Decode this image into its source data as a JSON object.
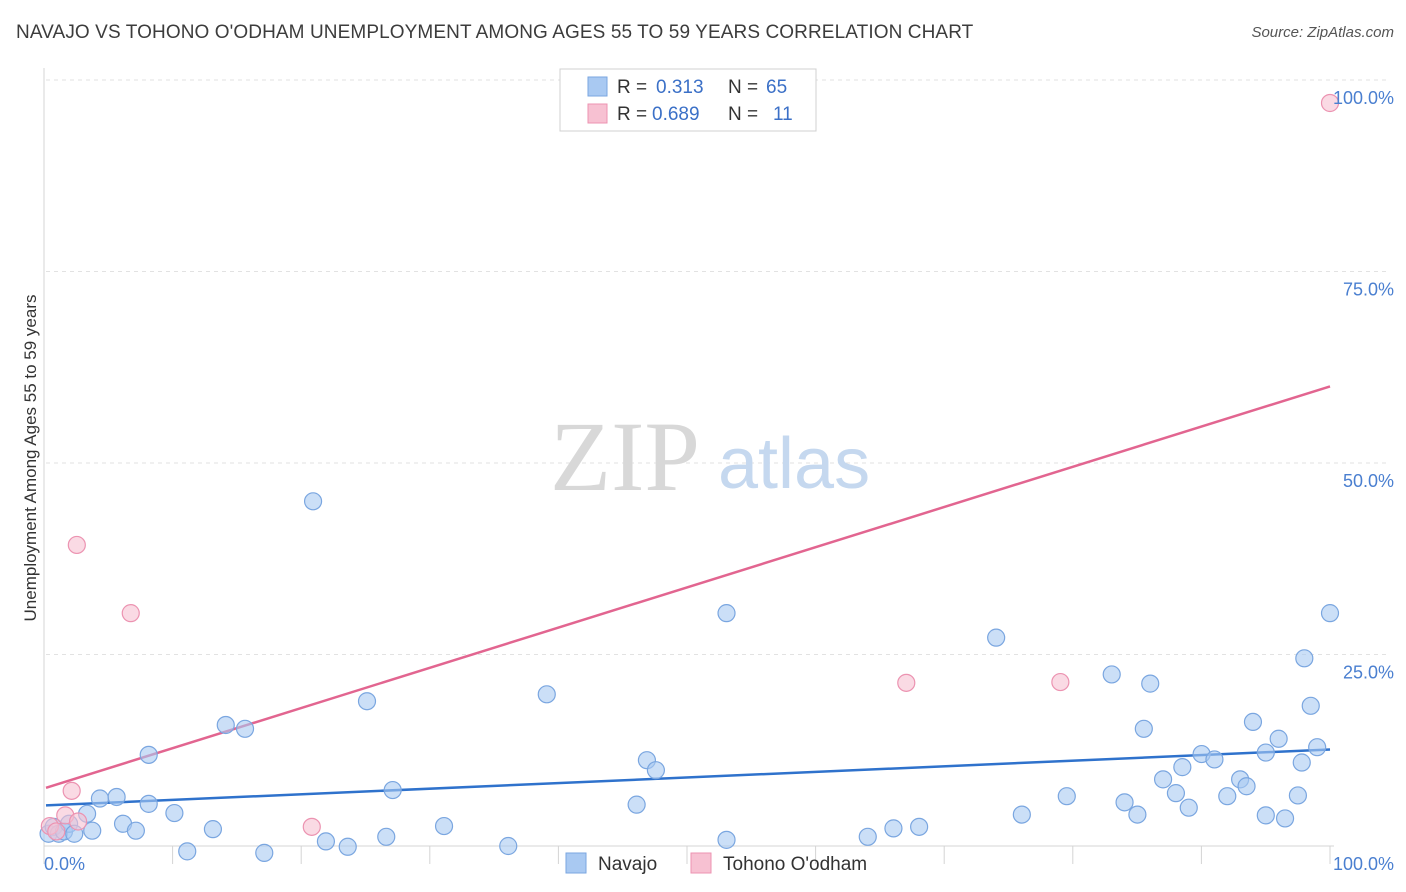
{
  "header": {
    "title": "NAVAJO VS TOHONO O'ODHAM UNEMPLOYMENT AMONG AGES 55 TO 59 YEARS CORRELATION CHART",
    "source": "Source: ZipAtlas.com"
  },
  "watermark": {
    "zip": "ZIP",
    "atlas": "atlas"
  },
  "colors": {
    "navajo_fill": "#a9c9f2",
    "navajo_stroke": "#7aa6e0",
    "navajo_line": "#2f72cc",
    "tohono_fill": "#f7c1d2",
    "tohono_stroke": "#ec93b1",
    "tohono_line": "#e26590",
    "tick_text": "#4a7fd0"
  },
  "legend": {
    "rows": [
      {
        "r_label": "R =",
        "r_value": "0.313",
        "n_label": "N =",
        "n_value": "65"
      },
      {
        "r_label": "R =",
        "r_value": "0.689",
        "n_label": "N =",
        "n_value": "11"
      }
    ]
  },
  "bottom_legend": [
    "Navajo",
    "Tohono O'odham"
  ],
  "chart_data": {
    "type": "scatter",
    "title": "NAVAJO VS TOHONO O'ODHAM UNEMPLOYMENT AMONG AGES 55 TO 59 YEARS CORRELATION CHART",
    "xlabel": "",
    "ylabel": "Unemployment Among Ages 55 to 59 years",
    "xlim": [
      0,
      100
    ],
    "ylim": [
      0,
      100
    ],
    "x_tick_labels": [
      "0.0%",
      "100.0%"
    ],
    "y_tick_labels": [
      {
        "value": 100,
        "label": "100.0%"
      },
      {
        "value": 75,
        "label": "75.0%"
      },
      {
        "value": 50,
        "label": "50.0%"
      },
      {
        "value": 25,
        "label": "25.0%"
      }
    ],
    "series": [
      {
        "name": "Navajo",
        "R": 0.313,
        "N": 65,
        "trend": {
          "x": [
            0,
            100
          ],
          "y": [
            5.3,
            12.6
          ]
        },
        "points": [
          [
            0.2,
            1.6
          ],
          [
            0.6,
            2.5
          ],
          [
            1.0,
            1.6
          ],
          [
            1.4,
            1.9
          ],
          [
            1.8,
            2.9
          ],
          [
            2.2,
            1.6
          ],
          [
            3.2,
            4.2
          ],
          [
            3.6,
            2.0
          ],
          [
            4.2,
            6.2
          ],
          [
            5.5,
            6.4
          ],
          [
            6.0,
            2.9
          ],
          [
            7.0,
            2.0
          ],
          [
            8.0,
            11.9
          ],
          [
            8.0,
            5.5
          ],
          [
            10.0,
            4.3
          ],
          [
            11.0,
            -0.7
          ],
          [
            13.0,
            2.2
          ],
          [
            14.0,
            15.8
          ],
          [
            15.5,
            15.3
          ],
          [
            17.0,
            -0.9
          ],
          [
            20.8,
            45.0
          ],
          [
            21.8,
            0.6
          ],
          [
            23.5,
            -0.1
          ],
          [
            25.0,
            18.9
          ],
          [
            26.5,
            1.2
          ],
          [
            27.0,
            7.3
          ],
          [
            31.0,
            2.6
          ],
          [
            36.0,
            0.0
          ],
          [
            39.0,
            19.8
          ],
          [
            46.0,
            5.4
          ],
          [
            46.8,
            11.2
          ],
          [
            47.5,
            9.9
          ],
          [
            53.0,
            0.8
          ],
          [
            53.0,
            30.4
          ],
          [
            64.0,
            1.2
          ],
          [
            66.0,
            2.3
          ],
          [
            68.0,
            2.5
          ],
          [
            74.0,
            27.2
          ],
          [
            76.0,
            4.1
          ],
          [
            79.5,
            6.5
          ],
          [
            83.0,
            22.4
          ],
          [
            84.0,
            5.7
          ],
          [
            85.0,
            4.1
          ],
          [
            85.5,
            15.3
          ],
          [
            86.0,
            21.2
          ],
          [
            87.0,
            8.7
          ],
          [
            88.0,
            6.9
          ],
          [
            88.5,
            10.3
          ],
          [
            89.0,
            5.0
          ],
          [
            90.0,
            12.0
          ],
          [
            91.0,
            11.3
          ],
          [
            92.0,
            6.5
          ],
          [
            93.0,
            8.7
          ],
          [
            93.5,
            7.8
          ],
          [
            94.0,
            16.2
          ],
          [
            95.0,
            4.0
          ],
          [
            95.0,
            12.2
          ],
          [
            96.0,
            14.0
          ],
          [
            96.5,
            3.6
          ],
          [
            97.5,
            6.6
          ],
          [
            97.8,
            10.9
          ],
          [
            98.0,
            24.5
          ],
          [
            98.5,
            18.3
          ],
          [
            99.0,
            12.9
          ],
          [
            100.0,
            30.4
          ]
        ]
      },
      {
        "name": "Tohono O'odham",
        "R": 0.689,
        "N": 11,
        "trend": {
          "x": [
            0,
            100
          ],
          "y": [
            7.6,
            60.0
          ]
        },
        "points": [
          [
            0.3,
            2.6
          ],
          [
            0.8,
            1.9
          ],
          [
            1.5,
            4.0
          ],
          [
            2.5,
            3.2
          ],
          [
            2.0,
            7.2
          ],
          [
            2.4,
            39.3
          ],
          [
            6.6,
            30.4
          ],
          [
            20.7,
            2.5
          ],
          [
            67.0,
            21.3
          ],
          [
            79.0,
            21.4
          ],
          [
            100.0,
            97.0
          ]
        ]
      }
    ]
  }
}
